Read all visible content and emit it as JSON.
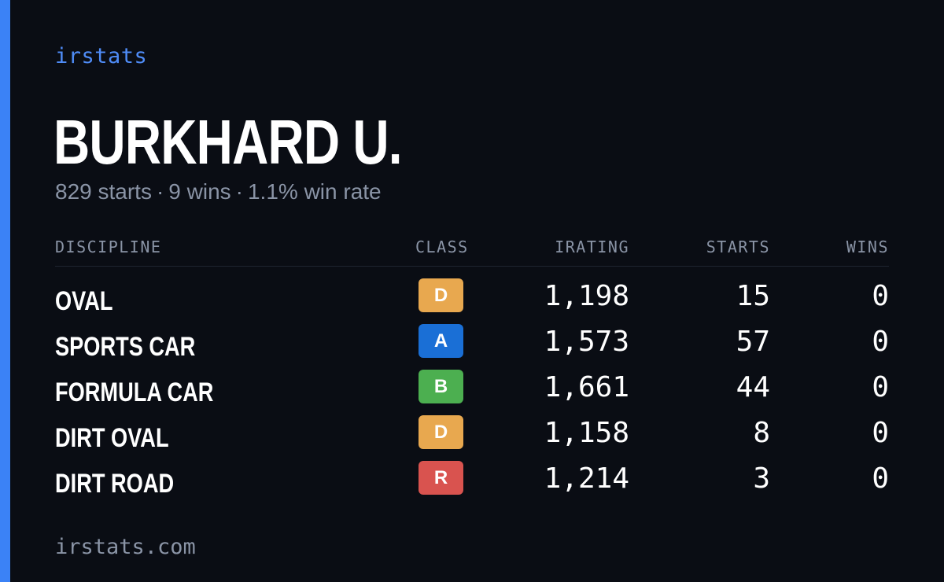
{
  "brand": "irstats",
  "driver": {
    "name": "BURKHARD U.",
    "starts": "829 starts",
    "wins": "9 wins",
    "win_rate": "1.1% win rate",
    "separator": "·"
  },
  "table": {
    "headers": {
      "discipline": "DISCIPLINE",
      "class": "CLASS",
      "irating": "IRATING",
      "starts": "STARTS",
      "wins": "WINS"
    },
    "rows": [
      {
        "discipline": "OVAL",
        "class": "D",
        "class_color": "#e8a84f",
        "irating": "1,198",
        "starts": "15",
        "wins": "0"
      },
      {
        "discipline": "SPORTS CAR",
        "class": "A",
        "class_color": "#1a6fd6",
        "irating": "1,573",
        "starts": "57",
        "wins": "0"
      },
      {
        "discipline": "FORMULA CAR",
        "class": "B",
        "class_color": "#4caf50",
        "irating": "1,661",
        "starts": "44",
        "wins": "0"
      },
      {
        "discipline": "DIRT OVAL",
        "class": "D",
        "class_color": "#e8a84f",
        "irating": "1,158",
        "starts": "8",
        "wins": "0"
      },
      {
        "discipline": "DIRT ROAD",
        "class": "R",
        "class_color": "#d9534f",
        "irating": "1,214",
        "starts": "3",
        "wins": "0"
      }
    ]
  },
  "footer": "irstats.com",
  "colors": {
    "background": "#0a0d14",
    "accent": "#3b82f6",
    "muted": "#8a94a6"
  }
}
